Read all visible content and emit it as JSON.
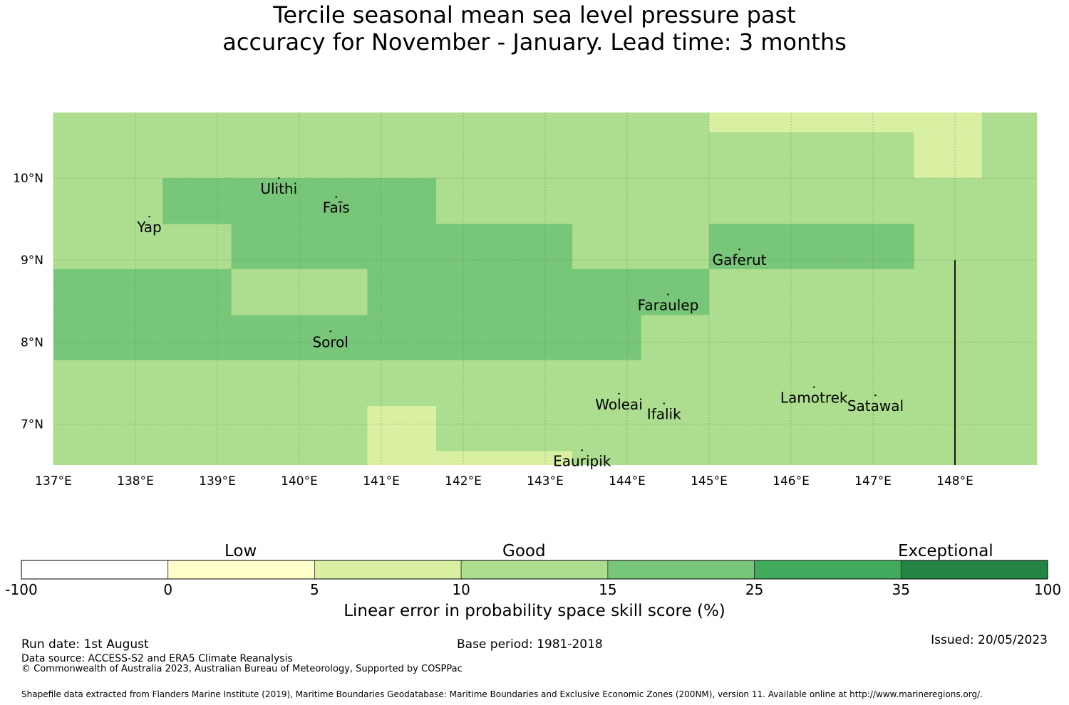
{
  "title": {
    "line1": "Tercile seasonal mean sea level pressure past",
    "line2": "accuracy for November - January. Lead time: 3 months"
  },
  "map": {
    "lon_range": [
      137,
      149
    ],
    "lat_range": [
      6.5,
      10.8
    ],
    "grid_lon_step": 1,
    "grid_lat_step": 1,
    "x_tick_labels": [
      "137°E",
      "138°E",
      "139°E",
      "140°E",
      "141°E",
      "142°E",
      "143°E",
      "144°E",
      "145°E",
      "146°E",
      "147°E",
      "148°E"
    ],
    "y_tick_labels": [
      "10°N",
      "9°N",
      "8°N",
      "7°N"
    ],
    "y_tick_values": [
      10,
      9,
      8,
      7
    ],
    "colors": {
      "5-10": "#d9f0a3",
      "10-15": "#addd8e",
      "15-25": "#78c679",
      "boundary": "#000000"
    },
    "cells": [
      {
        "lon": [
          137,
          149
        ],
        "lat": [
          6.5,
          10.8
        ],
        "class": "10-15"
      },
      {
        "lon": [
          145,
          148.33
        ],
        "lat": [
          10.56,
          10.8
        ],
        "class": "5-10"
      },
      {
        "lon": [
          147.5,
          148.33
        ],
        "lat": [
          10.0,
          10.56
        ],
        "class": "5-10"
      },
      {
        "lon": [
          138.33,
          141.67
        ],
        "lat": [
          9.44,
          10.0
        ],
        "class": "15-25"
      },
      {
        "lon": [
          139.17,
          143.33
        ],
        "lat": [
          8.89,
          9.44
        ],
        "class": "15-25"
      },
      {
        "lon": [
          145,
          147.5
        ],
        "lat": [
          8.89,
          9.44
        ],
        "class": "15-25"
      },
      {
        "lon": [
          137,
          145
        ],
        "lat": [
          8.33,
          8.89
        ],
        "class": "15-25"
      },
      {
        "lon": [
          137,
          144.17
        ],
        "lat": [
          7.78,
          8.33
        ],
        "class": "15-25"
      },
      {
        "lon": [
          139.17,
          140.83
        ],
        "lat": [
          8.33,
          8.89
        ],
        "class": "10-15"
      },
      {
        "lon": [
          140.83,
          141.67
        ],
        "lat": [
          6.5,
          7.22
        ],
        "class": "5-10"
      },
      {
        "lon": [
          141.67,
          143.33
        ],
        "lat": [
          6.5,
          6.67
        ],
        "class": "5-10"
      }
    ],
    "boundary_line": {
      "lon": 148,
      "lat": [
        6.5,
        9.0
      ]
    },
    "islands": [
      {
        "name": "Ulithi",
        "lon": 139.75,
        "lat": 10.0
      },
      {
        "name": "Faīs",
        "lon": 140.45,
        "lat": 9.77
      },
      {
        "name": "Yap",
        "lon": 138.17,
        "lat": 9.53
      },
      {
        "name": "Gaferut",
        "lon": 145.37,
        "lat": 9.13
      },
      {
        "name": "Faraulep",
        "lon": 144.5,
        "lat": 8.58
      },
      {
        "name": "Sorol",
        "lon": 140.38,
        "lat": 8.13
      },
      {
        "name": "Woleai",
        "lon": 143.9,
        "lat": 7.37
      },
      {
        "name": "Ifalik",
        "lon": 144.45,
        "lat": 7.25
      },
      {
        "name": "Lamotrek",
        "lon": 146.28,
        "lat": 7.45
      },
      {
        "name": "Satawal",
        "lon": 147.03,
        "lat": 7.35
      },
      {
        "name": "Eauripik",
        "lon": 143.45,
        "lat": 6.68
      }
    ]
  },
  "colorbar": {
    "classes": [
      {
        "from": "-100",
        "to": "0",
        "color": "#ffffff"
      },
      {
        "from": "0",
        "to": "5",
        "color": "#ffffcc"
      },
      {
        "from": "5",
        "to": "10",
        "color": "#d9f0a3"
      },
      {
        "from": "10",
        "to": "15",
        "color": "#addd8e"
      },
      {
        "from": "15",
        "to": "25",
        "color": "#78c679"
      },
      {
        "from": "25",
        "to": "35",
        "color": "#41ab5d"
      },
      {
        "from": "35",
        "to": "100",
        "color": "#238443"
      }
    ],
    "tick_labels": [
      "-100",
      "0",
      "5",
      "10",
      "15",
      "25",
      "35",
      "100"
    ],
    "category_low": "Low",
    "category_good": "Good",
    "category_exceptional": "Exceptional",
    "label": "Linear error in probability space skill score (%)"
  },
  "footer": {
    "run_date": "Run date: 1st August",
    "base_period": "Base period: 1981-2018",
    "issued": "Issued: 20/05/2023",
    "data_source": "Data source: ACCESS-S2 and ERA5 Climate Reanalysis",
    "copyright": "© Commonwealth of Australia 2023, Australian Bureau of Meteorology, Supported by COSPPac",
    "shapefile": "Shapefile data extracted from Flanders Marine Institute (2019), Maritime Boundaries Geodatabase: Maritime Boundaries and Exclusive Economic Zones (200NM), version 11. Available online at http://www.marineregions.org/."
  }
}
